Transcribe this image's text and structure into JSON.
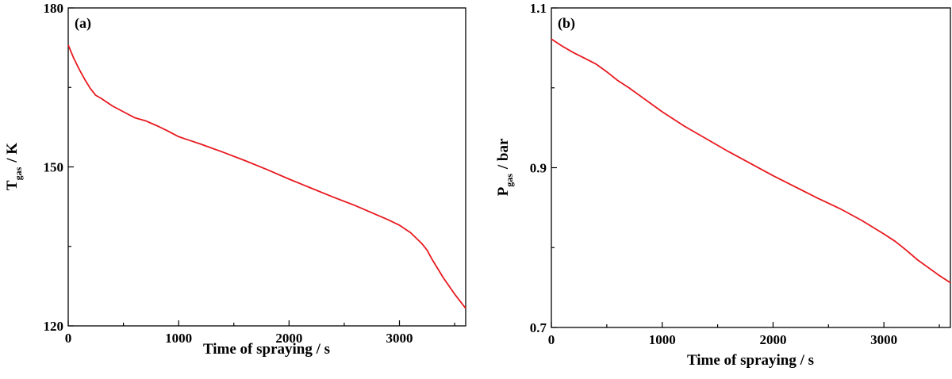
{
  "chart_data": [
    {
      "type": "line",
      "panel_label": "(a)",
      "xlabel": "Time  of spraying / s",
      "ylabel_main": "T",
      "ylabel_sub": "gas",
      "ylabel_unit": "/ K",
      "xlim": [
        0,
        3600
      ],
      "ylim": [
        120,
        180
      ],
      "xticks": [
        0,
        1000,
        2000,
        3000
      ],
      "xtick_labels": [
        "0",
        "1000",
        "2000",
        "3000"
      ],
      "yticks": [
        120,
        150,
        180
      ],
      "ytick_labels": [
        "120",
        "150",
        "180"
      ],
      "line_color": "#e8191f",
      "grid": false,
      "series": [
        {
          "x": [
            0,
            50,
            100,
            150,
            200,
            250,
            300,
            400,
            500,
            600,
            700,
            800,
            900,
            1000,
            1100,
            1200,
            1400,
            1600,
            1800,
            2000,
            2200,
            2400,
            2600,
            2800,
            2900,
            3000,
            3100,
            3200,
            3250,
            3300,
            3400,
            3500,
            3600
          ],
          "y": [
            173,
            170.5,
            168.4,
            166.5,
            164.8,
            163.5,
            162.9,
            161.5,
            160.4,
            159.3,
            158.7,
            157.8,
            156.8,
            155.7,
            155.0,
            154.3,
            152.8,
            151.2,
            149.5,
            147.7,
            146.0,
            144.3,
            142.7,
            140.9,
            140.0,
            139.0,
            137.6,
            135.6,
            134.3,
            132.4,
            129.0,
            126.0,
            123.3
          ]
        }
      ]
    },
    {
      "type": "line",
      "panel_label": "(b)",
      "xlabel": "Time  of spraying / s",
      "ylabel_main": "P",
      "ylabel_sub": "gas",
      "ylabel_unit": "/ bar",
      "xlim": [
        0,
        3600
      ],
      "ylim": [
        0.7,
        1.1
      ],
      "xticks": [
        0,
        1000,
        2000,
        3000
      ],
      "xtick_labels": [
        "0",
        "1000",
        "2000",
        "3000"
      ],
      "yticks": [
        0.7,
        0.9,
        1.1
      ],
      "ytick_labels": [
        "0.7",
        "0.9",
        "1.1"
      ],
      "line_color": "#e8191f",
      "grid": false,
      "series": [
        {
          "x": [
            0,
            100,
            200,
            300,
            400,
            500,
            600,
            700,
            800,
            900,
            1000,
            1200,
            1400,
            1600,
            1800,
            2000,
            2200,
            2400,
            2600,
            2800,
            3000,
            3100,
            3200,
            3300,
            3400,
            3500,
            3600
          ],
          "y": [
            1.061,
            1.052,
            1.044,
            1.037,
            1.03,
            1.02,
            1.009,
            1.0,
            0.99,
            0.98,
            0.97,
            0.952,
            0.936,
            0.92,
            0.905,
            0.89,
            0.876,
            0.862,
            0.849,
            0.834,
            0.817,
            0.808,
            0.797,
            0.785,
            0.775,
            0.765,
            0.756
          ]
        }
      ]
    }
  ]
}
